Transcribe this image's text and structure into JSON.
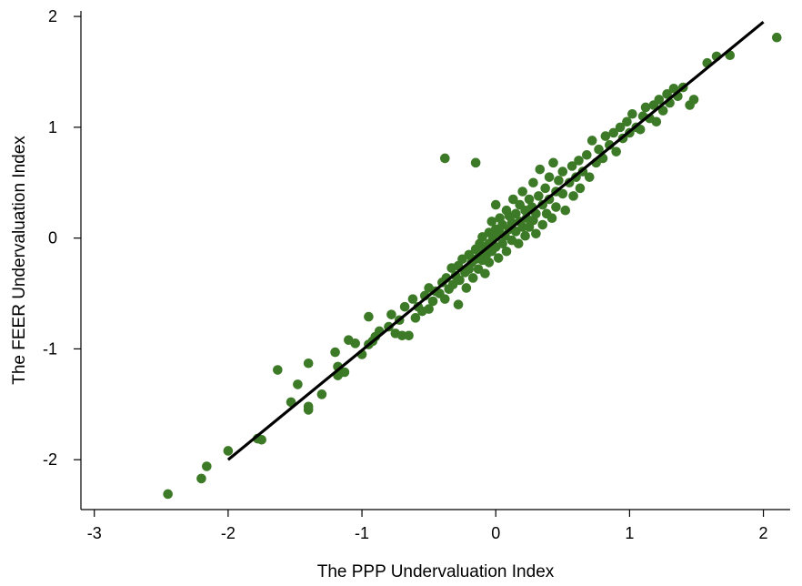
{
  "chart_data": {
    "type": "scatter",
    "title": "",
    "xlabel": "The PPP Undervaluation Index",
    "ylabel": "The FEER Undervaluation Index",
    "xlim": [
      -3.1,
      2.2
    ],
    "ylim": [
      -2.45,
      2.05
    ],
    "x_ticks": [
      -3,
      -2,
      -1,
      0,
      1,
      2
    ],
    "y_ticks": [
      -2,
      -1,
      0,
      1,
      2
    ],
    "grid": false,
    "colors": {
      "points": "#3d7a27",
      "fit_line": "#000000"
    },
    "fit_line": {
      "x": [
        -2.0,
        2.0
      ],
      "y": [
        -2.0,
        1.95
      ]
    },
    "series": [
      {
        "points": [
          [
            -2.45,
            -2.31
          ],
          [
            -2.2,
            -2.17
          ],
          [
            -2.16,
            -2.06
          ],
          [
            -2.0,
            -1.92
          ],
          [
            -1.78,
            -1.81
          ],
          [
            -1.75,
            -1.82
          ],
          [
            -1.63,
            -1.19
          ],
          [
            -1.53,
            -1.48
          ],
          [
            -1.48,
            -1.32
          ],
          [
            -1.4,
            -1.13
          ],
          [
            -1.4,
            -1.52
          ],
          [
            -1.4,
            -1.55
          ],
          [
            -1.3,
            -1.41
          ],
          [
            -1.2,
            -1.03
          ],
          [
            -1.18,
            -1.16
          ],
          [
            -1.18,
            -1.24
          ],
          [
            -1.15,
            -1.21
          ],
          [
            -1.13,
            -1.21
          ],
          [
            -1.1,
            -0.92
          ],
          [
            -1.05,
            -0.95
          ],
          [
            -1.0,
            -1.05
          ],
          [
            -0.95,
            -0.96
          ],
          [
            -0.95,
            -0.71
          ],
          [
            -0.92,
            -0.93
          ],
          [
            -0.9,
            -0.89
          ],
          [
            -0.87,
            -0.84
          ],
          [
            -0.8,
            -0.8
          ],
          [
            -0.78,
            -0.69
          ],
          [
            -0.75,
            -0.86
          ],
          [
            -0.72,
            -0.74
          ],
          [
            -0.7,
            -0.88
          ],
          [
            -0.68,
            -0.62
          ],
          [
            -0.65,
            -0.88
          ],
          [
            -0.62,
            -0.55
          ],
          [
            -0.6,
            -0.72
          ],
          [
            -0.58,
            -0.62
          ],
          [
            -0.55,
            -0.66
          ],
          [
            -0.53,
            -0.52
          ],
          [
            -0.5,
            -0.45
          ],
          [
            -0.5,
            -0.64
          ],
          [
            -0.47,
            -0.57
          ],
          [
            -0.45,
            -0.48
          ],
          [
            -0.42,
            -0.5
          ],
          [
            -0.4,
            -0.4
          ],
          [
            -0.38,
            0.72
          ],
          [
            -0.38,
            -0.55
          ],
          [
            -0.37,
            -0.36
          ],
          [
            -0.35,
            -0.46
          ],
          [
            -0.33,
            -0.27
          ],
          [
            -0.32,
            -0.42
          ],
          [
            -0.3,
            -0.34
          ],
          [
            -0.28,
            -0.6
          ],
          [
            -0.28,
            -0.25
          ],
          [
            -0.27,
            -0.38
          ],
          [
            -0.25,
            -0.19
          ],
          [
            -0.23,
            -0.31
          ],
          [
            -0.22,
            -0.45
          ],
          [
            -0.2,
            -0.15
          ],
          [
            -0.2,
            -0.28
          ],
          [
            -0.18,
            -0.22
          ],
          [
            -0.17,
            -0.36
          ],
          [
            -0.15,
            0.68
          ],
          [
            -0.15,
            -0.1
          ],
          [
            -0.15,
            -0.19
          ],
          [
            -0.13,
            -0.28
          ],
          [
            -0.12,
            -0.05
          ],
          [
            -0.12,
            -0.14
          ],
          [
            -0.1,
            -0.2
          ],
          [
            -0.1,
            0.01
          ],
          [
            -0.08,
            -0.08
          ],
          [
            -0.08,
            -0.32
          ],
          [
            -0.07,
            -0.15
          ],
          [
            -0.05,
            0.05
          ],
          [
            -0.05,
            -0.05
          ],
          [
            -0.05,
            -0.22
          ],
          [
            -0.03,
            0.15
          ],
          [
            -0.03,
            -0.12
          ],
          [
            -0.02,
            0.0
          ],
          [
            0.0,
            -0.08
          ],
          [
            0.0,
            0.08
          ],
          [
            0.0,
            0.3
          ],
          [
            0.02,
            -0.18
          ],
          [
            0.03,
            0.05
          ],
          [
            0.03,
            0.18
          ],
          [
            0.05,
            -0.05
          ],
          [
            0.05,
            0.12
          ],
          [
            0.07,
            0.02
          ],
          [
            0.08,
            0.25
          ],
          [
            0.08,
            -0.12
          ],
          [
            0.1,
            0.08
          ],
          [
            0.1,
            0.2
          ],
          [
            0.12,
            -0.02
          ],
          [
            0.12,
            0.14
          ],
          [
            0.13,
            0.35
          ],
          [
            0.15,
            0.22
          ],
          [
            0.15,
            0.06
          ],
          [
            0.17,
            -0.05
          ],
          [
            0.18,
            0.15
          ],
          [
            0.18,
            0.3
          ],
          [
            0.2,
            0.1
          ],
          [
            0.2,
            0.42
          ],
          [
            0.22,
            0.25
          ],
          [
            0.22,
            0.02
          ],
          [
            0.23,
            0.18
          ],
          [
            0.25,
            0.35
          ],
          [
            0.25,
            0.1
          ],
          [
            0.27,
            0.28
          ],
          [
            0.28,
            0.5
          ],
          [
            0.28,
            0.16
          ],
          [
            0.3,
            0.22
          ],
          [
            0.3,
            0.04
          ],
          [
            0.32,
            0.38
          ],
          [
            0.33,
            0.62
          ],
          [
            0.35,
            0.3
          ],
          [
            0.35,
            0.12
          ],
          [
            0.37,
            0.45
          ],
          [
            0.38,
            0.22
          ],
          [
            0.4,
            0.55
          ],
          [
            0.4,
            0.35
          ],
          [
            0.42,
            0.18
          ],
          [
            0.43,
            0.68
          ],
          [
            0.45,
            0.42
          ],
          [
            0.45,
            0.28
          ],
          [
            0.47,
            0.52
          ],
          [
            0.5,
            0.4
          ],
          [
            0.5,
            0.6
          ],
          [
            0.52,
            0.25
          ],
          [
            0.55,
            0.5
          ],
          [
            0.57,
            0.65
          ],
          [
            0.58,
            0.38
          ],
          [
            0.6,
            0.55
          ],
          [
            0.62,
            0.7
          ],
          [
            0.63,
            0.45
          ],
          [
            0.65,
            0.6
          ],
          [
            0.68,
            0.75
          ],
          [
            0.7,
            0.55
          ],
          [
            0.72,
            0.88
          ],
          [
            0.75,
            0.68
          ],
          [
            0.77,
            0.8
          ],
          [
            0.8,
            0.72
          ],
          [
            0.82,
            0.92
          ],
          [
            0.85,
            0.84
          ],
          [
            0.88,
            0.95
          ],
          [
            0.9,
            0.78
          ],
          [
            0.93,
            1.0
          ],
          [
            0.95,
            0.9
          ],
          [
            0.98,
            1.05
          ],
          [
            1.0,
            0.95
          ],
          [
            1.02,
            1.12
          ],
          [
            1.05,
            1.0
          ],
          [
            1.08,
            0.98
          ],
          [
            1.1,
            1.1
          ],
          [
            1.12,
            1.18
          ],
          [
            1.15,
            1.08
          ],
          [
            1.18,
            1.2
          ],
          [
            1.2,
            1.05
          ],
          [
            1.22,
            1.25
          ],
          [
            1.25,
            1.15
          ],
          [
            1.28,
            1.3
          ],
          [
            1.3,
            1.22
          ],
          [
            1.33,
            1.35
          ],
          [
            1.36,
            1.28
          ],
          [
            1.4,
            1.36
          ],
          [
            1.45,
            1.2
          ],
          [
            1.48,
            1.25
          ],
          [
            1.58,
            1.58
          ],
          [
            1.65,
            1.64
          ],
          [
            1.75,
            1.65
          ],
          [
            2.1,
            1.81
          ]
        ]
      }
    ]
  }
}
